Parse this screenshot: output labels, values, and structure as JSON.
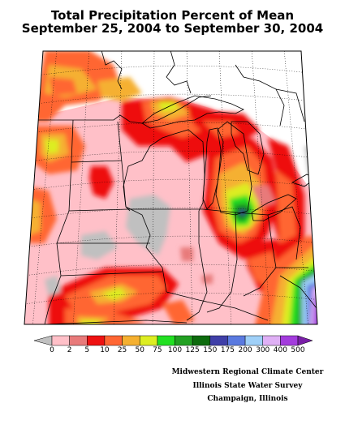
{
  "title": {
    "line1": "Total Precipitation Percent of Mean",
    "line2": "September 25, 2004 to September 30, 2004"
  },
  "legend": {
    "labels": [
      "0",
      "2",
      "5",
      "10",
      "25",
      "50",
      "75",
      "100",
      "125",
      "150",
      "175",
      "200",
      "300",
      "400",
      "500"
    ],
    "colors": [
      "#c0c0c0",
      "#ffc0c8",
      "#e87a7a",
      "#ee1111",
      "#ff6633",
      "#f5b030",
      "#dded22",
      "#22e022",
      "#22a022",
      "#0d6b0d",
      "#3f3fa8",
      "#5a7ae0",
      "#9fd0f8",
      "#dfb0f5",
      "#a33cdd",
      "#7a1fa8"
    ]
  },
  "credits": {
    "line1": "Midwestern Regional Climate Center",
    "line2": "Illinois State Water Survey",
    "line3": "Champaign, Illinois"
  }
}
